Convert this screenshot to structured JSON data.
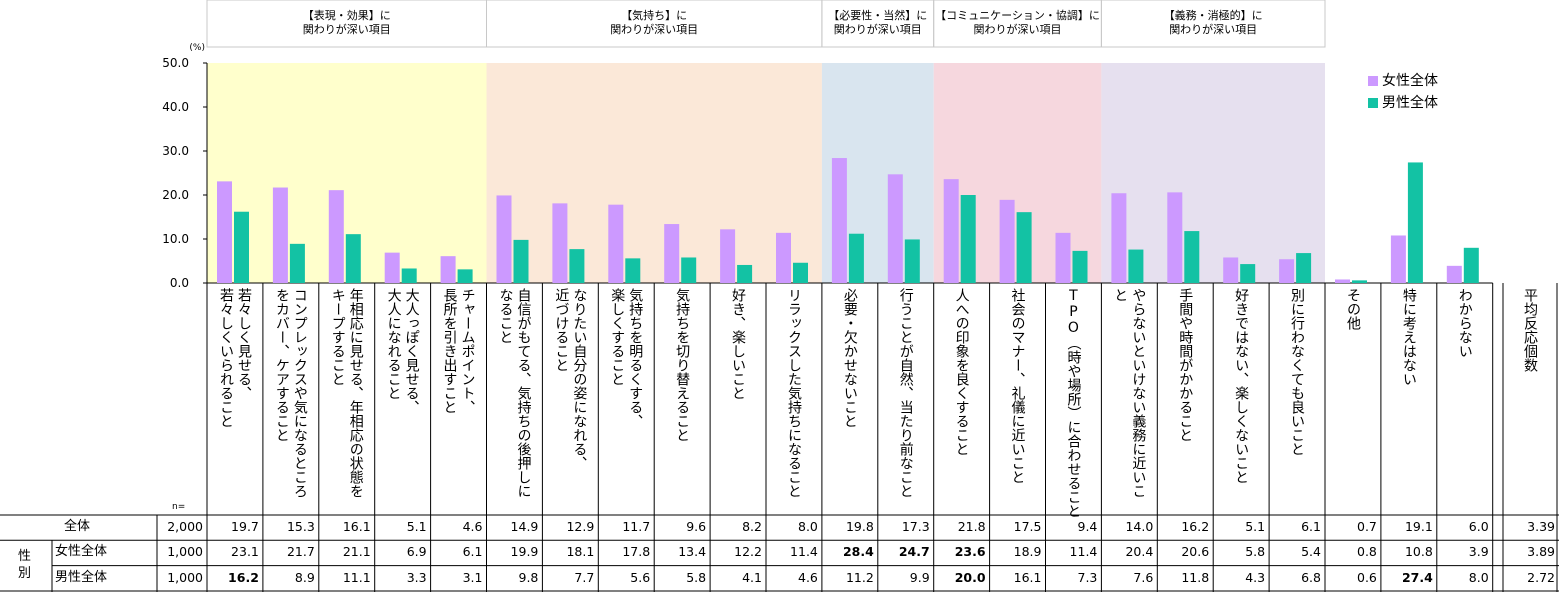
{
  "chart_data": {
    "type": "bar",
    "unit_label": "(%)",
    "ylim": [
      0,
      50
    ],
    "yticks": [
      "0.0",
      "10.0",
      "20.0",
      "30.0",
      "40.0",
      "50.0"
    ],
    "groups": [
      {
        "title": "【表現・効果】に\n関わりが深い項目",
        "color": "#ffffcc",
        "start": 0,
        "end": 4
      },
      {
        "title": "【気持ち】に\n関わりが深い項目",
        "color": "#fbe8d8",
        "start": 5,
        "end": 10
      },
      {
        "title": "【必要性・当然】に\n関わりが深い項目",
        "color": "#d9e5ef",
        "start": 11,
        "end": 12
      },
      {
        "title": "【コミュニケーション・協調】に\n関わりが深い項目",
        "color": "#f6d7de",
        "start": 13,
        "end": 15
      },
      {
        "title": "【義務・消極的】に\n関わりが深い項目",
        "color": "#e6e0ef",
        "start": 16,
        "end": 19
      }
    ],
    "categories": [
      "若々しく見せる、\n若々しくいられること",
      "コンプレックスや気になるところ\nをカバー、ケアすること",
      "年相応に見せる、年相応の状態を\nキープすること",
      "大人っぽく見せる、\n大人になれること",
      "チャームポイント、\n長所を引き出すこと",
      "自信がもてる、気持ちの後押しに\nなること",
      "なりたい自分の姿になれる、\n近づけること",
      "気持ちを明るくする、\n楽しくすること",
      "気持ちを切り替えること",
      "好き、楽しいこと",
      "リラックスした気持ちになること",
      "必要・欠かせないこと",
      "行うことが自然、当たり前なこと",
      "人への印象を良くすること",
      "社会のマナー、礼儀に近いこと",
      "TPO（時や場所）に合わせること",
      "やらないといけない義務に近いこ\nと",
      "手間や時間がかかること",
      "好きではない、楽しくないこと",
      "別に行わなくても良いこと",
      "その他",
      "特に考えはない",
      "わからない"
    ],
    "series": [
      {
        "name": "女性全体",
        "color": "#cc99ff",
        "values": [
          23.1,
          21.7,
          21.1,
          6.9,
          6.1,
          19.9,
          18.1,
          17.8,
          13.4,
          12.2,
          11.4,
          28.4,
          24.7,
          23.6,
          18.9,
          11.4,
          20.4,
          20.6,
          5.8,
          5.4,
          0.8,
          10.8,
          3.9
        ]
      },
      {
        "name": "男性全体",
        "color": "#13c2a4",
        "values": [
          16.2,
          8.9,
          11.1,
          3.3,
          3.1,
          9.8,
          7.7,
          5.6,
          5.8,
          4.1,
          4.6,
          11.2,
          9.9,
          20.0,
          16.1,
          7.3,
          7.6,
          11.8,
          4.3,
          6.8,
          0.6,
          27.4,
          8.0
        ]
      }
    ],
    "table": {
      "n_label": "n=",
      "side_label": "性\n別",
      "avg_header": "平均反応個数",
      "rows": [
        {
          "label": "全体",
          "n": "2,000",
          "values": [
            "19.7",
            "15.3",
            "16.1",
            "5.1",
            "4.6",
            "14.9",
            "12.9",
            "11.7",
            "9.6",
            "8.2",
            "8.0",
            "19.8",
            "17.3",
            "21.8",
            "17.5",
            "9.4",
            "14.0",
            "16.2",
            "5.1",
            "6.1",
            "0.7",
            "19.1",
            "6.0"
          ],
          "avg": "3.39",
          "bold": []
        },
        {
          "label": "女性全体",
          "n": "1,000",
          "values": [
            "23.1",
            "21.7",
            "21.1",
            "6.9",
            "6.1",
            "19.9",
            "18.1",
            "17.8",
            "13.4",
            "12.2",
            "11.4",
            "28.4",
            "24.7",
            "23.6",
            "18.9",
            "11.4",
            "20.4",
            "20.6",
            "5.8",
            "5.4",
            "0.8",
            "10.8",
            "3.9"
          ],
          "avg": "3.89",
          "bold": [
            11,
            12,
            13
          ]
        },
        {
          "label": "男性全体",
          "n": "1,000",
          "values": [
            "16.2",
            "8.9",
            "11.1",
            "3.3",
            "3.1",
            "9.8",
            "7.7",
            "5.6",
            "5.8",
            "4.1",
            "4.6",
            "11.2",
            "9.9",
            "20.0",
            "16.1",
            "7.3",
            "7.6",
            "11.8",
            "4.3",
            "6.8",
            "0.6",
            "27.4",
            "8.0"
          ],
          "avg": "2.72",
          "bold": [
            0,
            13,
            21
          ]
        }
      ]
    }
  }
}
